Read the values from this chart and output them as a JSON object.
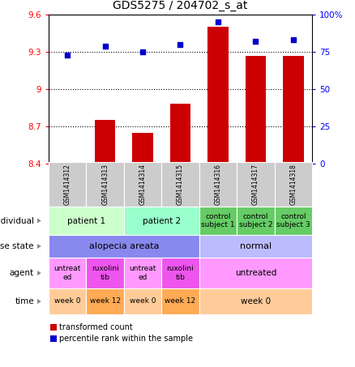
{
  "title": "GDS5275 / 204702_s_at",
  "samples": [
    "GSM1414312",
    "GSM1414313",
    "GSM1414314",
    "GSM1414315",
    "GSM1414316",
    "GSM1414317",
    "GSM1414318"
  ],
  "bar_values": [
    8.41,
    8.75,
    8.65,
    8.88,
    9.5,
    9.27,
    9.27
  ],
  "dot_values": [
    73,
    79,
    75,
    80,
    95,
    82,
    83
  ],
  "ylim_left": [
    8.4,
    9.6
  ],
  "ylim_right": [
    0,
    100
  ],
  "yticks_left": [
    8.4,
    8.7,
    9.0,
    9.3,
    9.6
  ],
  "yticks_right": [
    0,
    25,
    50,
    75,
    100
  ],
  "ytick_labels_left": [
    "8.4",
    "8.7",
    "9",
    "9.3",
    "9.6"
  ],
  "ytick_labels_right": [
    "0",
    "25",
    "50",
    "75",
    "100%"
  ],
  "bar_color": "#cc0000",
  "dot_color": "#0000cc",
  "bar_bottom": 8.4,
  "individual_data": [
    {
      "label": "patient 1",
      "cols": [
        0,
        1
      ],
      "color": "#ccffcc"
    },
    {
      "label": "patient 2",
      "cols": [
        2,
        3
      ],
      "color": "#99ffcc"
    },
    {
      "label": "control\nsubject 1",
      "cols": [
        4
      ],
      "color": "#66cc66"
    },
    {
      "label": "control\nsubject 2",
      "cols": [
        5
      ],
      "color": "#66cc66"
    },
    {
      "label": "control\nsubject 3",
      "cols": [
        6
      ],
      "color": "#66cc66"
    }
  ],
  "disease_data": [
    {
      "label": "alopecia areata",
      "cols": [
        0,
        1,
        2,
        3
      ],
      "color": "#8888ee"
    },
    {
      "label": "normal",
      "cols": [
        4,
        5,
        6
      ],
      "color": "#bbbbff"
    }
  ],
  "agent_data": [
    {
      "label": "untreat\ned",
      "cols": [
        0
      ],
      "color": "#ff99ff"
    },
    {
      "label": "ruxolini\ntib",
      "cols": [
        1
      ],
      "color": "#ee55ee"
    },
    {
      "label": "untreat\ned",
      "cols": [
        2
      ],
      "color": "#ff99ff"
    },
    {
      "label": "ruxolini\ntib",
      "cols": [
        3
      ],
      "color": "#ee55ee"
    },
    {
      "label": "untreated",
      "cols": [
        4,
        5,
        6
      ],
      "color": "#ff99ff"
    }
  ],
  "time_data": [
    {
      "label": "week 0",
      "cols": [
        0
      ],
      "color": "#ffcc99"
    },
    {
      "label": "week 12",
      "cols": [
        1
      ],
      "color": "#ffaa55"
    },
    {
      "label": "week 0",
      "cols": [
        2
      ],
      "color": "#ffcc99"
    },
    {
      "label": "week 12",
      "cols": [
        3
      ],
      "color": "#ffaa55"
    },
    {
      "label": "week 0",
      "cols": [
        4,
        5,
        6
      ],
      "color": "#ffcc99"
    }
  ],
  "sample_bg_color": "#cccccc",
  "legend_red_label": "transformed count",
  "legend_blue_label": "percentile rank within the sample"
}
